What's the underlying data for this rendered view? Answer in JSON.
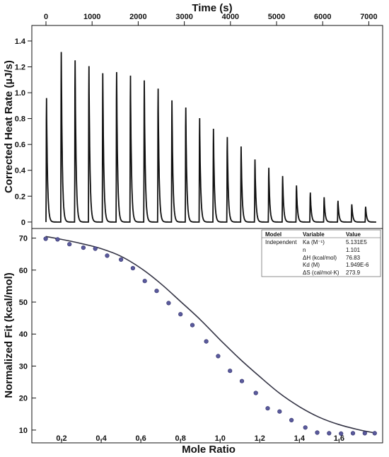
{
  "chart_data": [
    {
      "type": "line",
      "xlabel": "Time (s)",
      "ylabel": "Corrected Heat Rate (µJ/s)",
      "xlim": [
        0,
        7300
      ],
      "ylim": [
        -0.05,
        1.52
      ],
      "xticks": [
        0,
        1000,
        2000,
        3000,
        4000,
        5000,
        6000,
        7000
      ],
      "yticks": [
        0,
        0.2,
        0.4,
        0.6,
        0.8,
        1.0,
        1.2,
        1.4
      ],
      "xtick_labels": [
        "0",
        "1000",
        "2000",
        "3000",
        "4000",
        "5000",
        "6000",
        "7000"
      ],
      "ytick_labels": [
        "0",
        "0.2",
        "0.4",
        "0.6",
        "0.8",
        "1.0",
        "1.2",
        "1.4"
      ],
      "baseline": 0,
      "peaks": {
        "time": [
          10,
          330,
          630,
          930,
          1230,
          1530,
          1830,
          2130,
          2430,
          2730,
          3030,
          3330,
          3630,
          3930,
          4230,
          4530,
          4830,
          5130,
          5430,
          5730,
          6030,
          6330,
          6630,
          6930
        ],
        "height": [
          1.05,
          1.44,
          1.37,
          1.32,
          1.26,
          1.27,
          1.24,
          1.2,
          1.13,
          1.03,
          0.97,
          0.88,
          0.79,
          0.72,
          0.64,
          0.53,
          0.46,
          0.39,
          0.31,
          0.25,
          0.21,
          0.18,
          0.15,
          0.13
        ]
      },
      "grid": false
    },
    {
      "type": "scatter",
      "xlabel": "Mole Ratio",
      "ylabel": "Normalized Fit (kcal/mol)",
      "xlim": [
        0.05,
        1.82
      ],
      "ylim": [
        6,
        73
      ],
      "xticks": [
        0.2,
        0.4,
        0.6,
        0.8,
        1.0,
        1.2,
        1.4,
        1.6
      ],
      "yticks": [
        10,
        20,
        30,
        40,
        50,
        60,
        70
      ],
      "xtick_labels": [
        "0.2",
        "0.4",
        "0.6",
        "0.8",
        "1.0",
        "1.2",
        "1.4",
        "1.6"
      ],
      "ytick_labels": [
        "10",
        "20",
        "30",
        "40",
        "50",
        "60",
        "70"
      ],
      "x": [
        0.12,
        0.18,
        0.24,
        0.31,
        0.37,
        0.43,
        0.5,
        0.56,
        0.62,
        0.68,
        0.74,
        0.8,
        0.86,
        0.93,
        0.99,
        1.05,
        1.11,
        1.18,
        1.24,
        1.3,
        1.36,
        1.43,
        1.49,
        1.55,
        1.61,
        1.67,
        1.73,
        1.78
      ],
      "y": [
        69.8,
        69.6,
        68.1,
        67.0,
        66.7,
        64.5,
        63.3,
        60.6,
        56.6,
        53.5,
        49.7,
        46.2,
        42.8,
        37.7,
        33.1,
        28.5,
        25.3,
        21.6,
        16.8,
        15.8,
        13.1,
        10.8,
        9.2,
        9.0,
        8.9,
        9.0,
        9.0,
        9.0
      ],
      "fit": {
        "x": [
          0.12,
          0.2,
          0.3,
          0.4,
          0.5,
          0.6,
          0.7,
          0.8,
          0.9,
          1.0,
          1.1,
          1.2,
          1.3,
          1.4,
          1.5,
          1.6,
          1.7,
          1.77
        ],
        "y": [
          70.5,
          69.6,
          68.3,
          66.7,
          64.3,
          60.6,
          55.8,
          50.2,
          44.5,
          38.2,
          32.2,
          26.7,
          21.5,
          17.3,
          14.0,
          11.7,
          10.1,
          9.2
        ]
      },
      "grid": false
    }
  ],
  "results_table": {
    "headers": [
      "Model",
      "Variable",
      "Value"
    ],
    "model": "Independent",
    "rows": [
      {
        "variable": "Ka (M⁻¹)",
        "value": "5.131E5"
      },
      {
        "variable": "n",
        "value": "1.101"
      },
      {
        "variable": "ΔH (kcal/mol)",
        "value": "76.83"
      },
      {
        "variable": "Kd (M)",
        "value": "1.949E-6"
      },
      {
        "variable": "ΔS (cal/mol·K)",
        "value": "273.9"
      }
    ]
  },
  "colors": {
    "trace": "#111111",
    "fit_line": "#333344",
    "marker": "#5a5a9c",
    "marker_edge": "#2f2f6a"
  }
}
